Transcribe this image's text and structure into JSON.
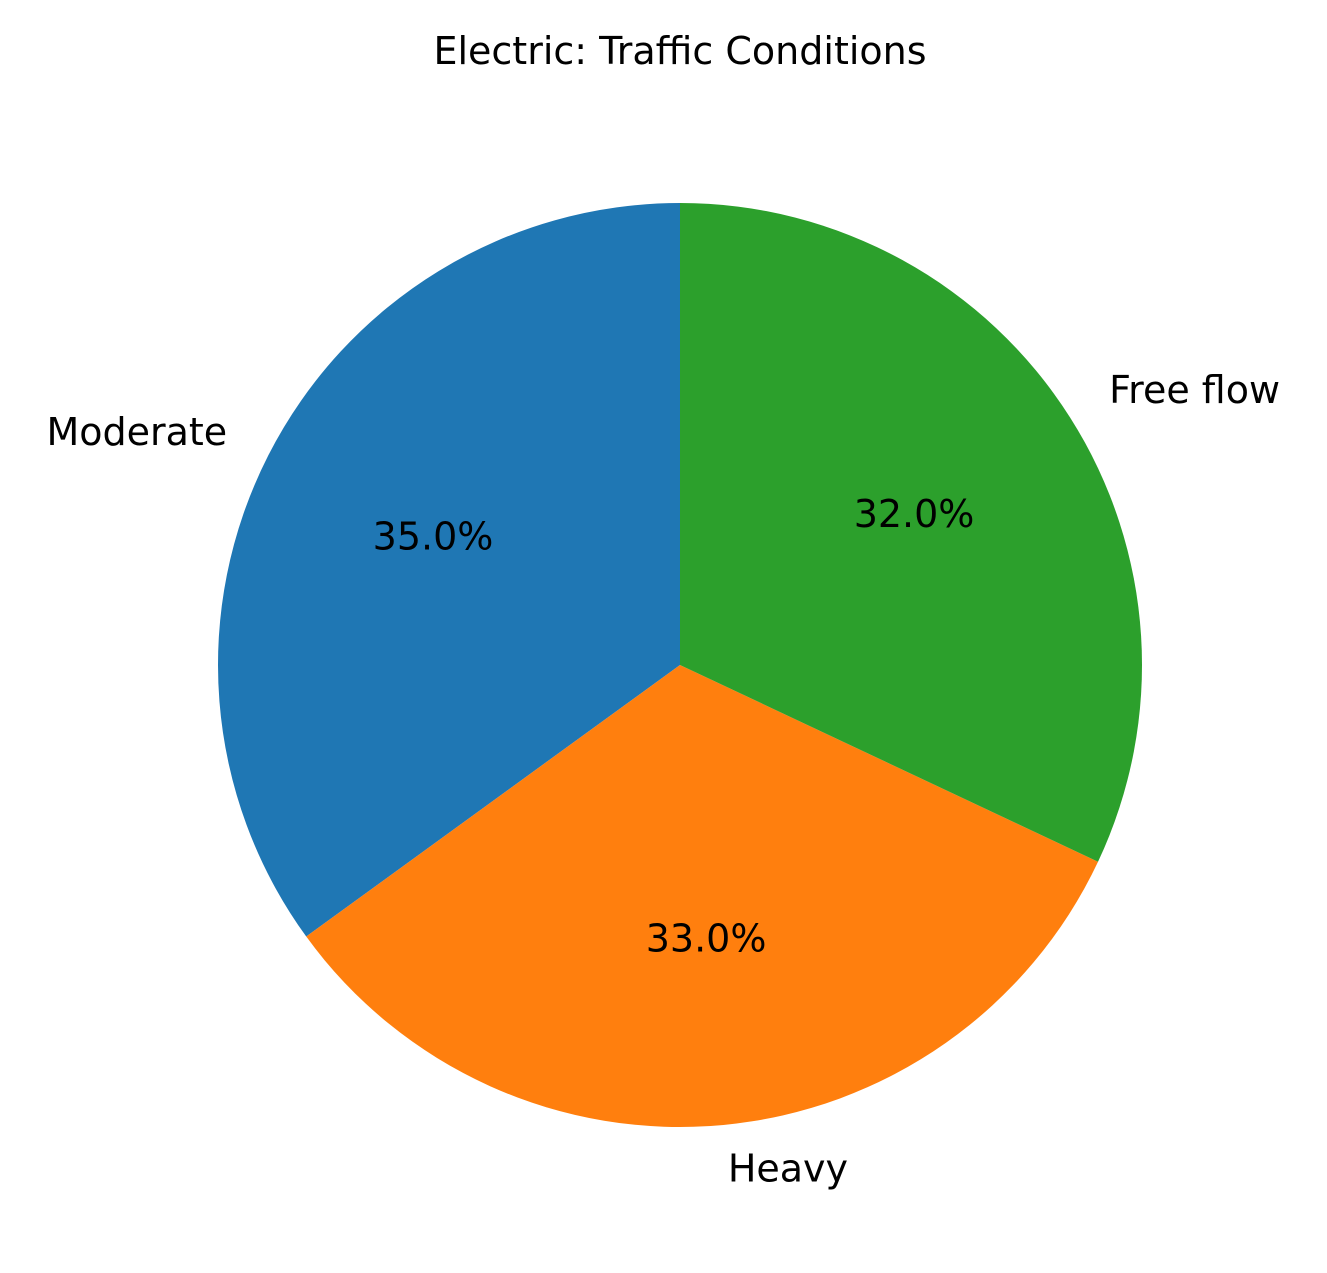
{
  "chart_data": {
    "type": "pie",
    "title": "Electric: Traffic Conditions",
    "categories": [
      "Moderate",
      "Heavy",
      "Free flow"
    ],
    "values": [
      35.0,
      33.0,
      32.0
    ],
    "percent_labels": [
      "35.0%",
      "33.0%",
      "32.0%"
    ],
    "colors": [
      "#1f77b4",
      "#ff7f0e",
      "#2ca02c"
    ],
    "start_angle_deg": 90,
    "direction": "counterclockwise"
  }
}
